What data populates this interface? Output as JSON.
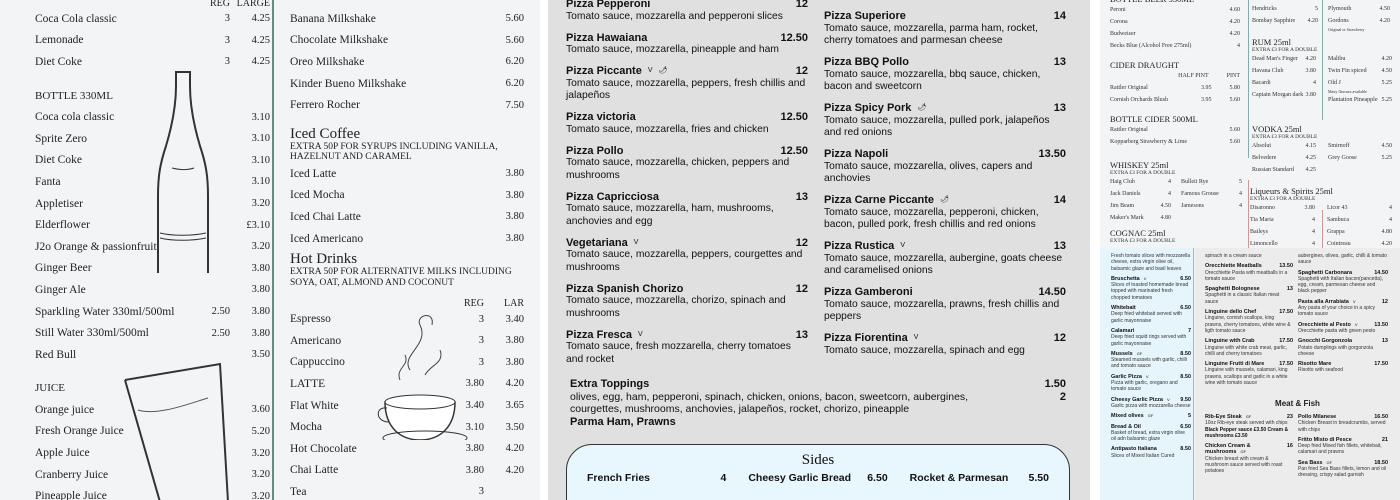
{
  "soft_drinks": {
    "headers": {
      "reg": "REG",
      "large": "LARGE"
    },
    "rows": [
      {
        "name": "Coca Cola classic",
        "reg": "3",
        "large": "4.25"
      },
      {
        "name": "Lemonade",
        "reg": "3",
        "large": "4.25"
      },
      {
        "name": "Diet Coke",
        "reg": "3",
        "large": "4.25"
      },
      {
        "heading": "BOTTLE 330ML"
      },
      {
        "name": "Coca cola classic",
        "large": "3.10"
      },
      {
        "name": "Sprite Zero",
        "large": "3.10"
      },
      {
        "name": "Diet Coke",
        "large": "3.10"
      },
      {
        "name": "Fanta",
        "large": "3.10"
      },
      {
        "name": "Appletiser",
        "large": "3.20"
      },
      {
        "name": "Elderflower",
        "large": "£3.10"
      },
      {
        "name": "J2o Orange & passionfruit",
        "large": "3.20"
      },
      {
        "name": "Ginger Beer",
        "large": "3.80"
      },
      {
        "name": "Ginger Ale",
        "large": "3.80"
      },
      {
        "name": "Sparkling Water 330ml/500ml",
        "reg": "2.50",
        "large": "3.80"
      },
      {
        "name": "Still Water 330ml/500ml",
        "reg": "2.50",
        "large": "3.80"
      },
      {
        "name": "Red Bull",
        "large": "3.50"
      },
      {
        "heading": "JUICE"
      },
      {
        "name": "Orange juice",
        "large": "3.60"
      },
      {
        "name": "Fresh Orange Juice",
        "large": "5.20"
      },
      {
        "name": "Apple Juice",
        "large": "3.20"
      },
      {
        "name": "Cranberry Juice",
        "large": "3.20"
      },
      {
        "name": "Pineapple Juice",
        "large": "3.20"
      }
    ]
  },
  "milkshakes": [
    {
      "name": "Banana Milkshake",
      "price": "5.60"
    },
    {
      "name": "Chocolate Milkshake",
      "price": "5.60"
    },
    {
      "name": "Oreo Milkshake",
      "price": "6.20"
    },
    {
      "name": "Kinder Bueno Milkshake",
      "price": "6.20"
    },
    {
      "name": "Ferrero Rocher",
      "price": "7.50"
    }
  ],
  "iced_coffee": {
    "title": "Iced Coffee",
    "subtitle": "EXTRA 50P FOR SYRUPS INCLUDING VANILLA, HAZELNUT AND CARAMEL",
    "items": [
      {
        "name": "Iced Latte",
        "price": "3.80"
      },
      {
        "name": "Iced Mocha",
        "price": "3.80"
      },
      {
        "name": "Iced Chai Latte",
        "price": "3.80"
      },
      {
        "name": "Iced Americano",
        "price": "3.80"
      }
    ]
  },
  "hot_drinks": {
    "title": "Hot Drinks",
    "subtitle": "EXTRA 50P FOR ALTERNATIVE MILKS INCLUDING SOYA, OAT, ALMOND AND COCONUT",
    "headers": {
      "reg": "REG",
      "large": "LAR"
    },
    "items": [
      {
        "name": "Espresso",
        "reg": "3",
        "large": "3.40"
      },
      {
        "name": "Americano",
        "reg": "3",
        "large": "3.80"
      },
      {
        "name": "Cappuccino",
        "reg": "3",
        "large": "3.80"
      },
      {
        "name": "LATTE",
        "reg": "3.80",
        "large": "4.20"
      },
      {
        "name": "Flat White",
        "reg": "3.40",
        "large": "3.65"
      },
      {
        "name": "Mocha",
        "reg": "3.10",
        "large": "3.50"
      },
      {
        "name": "Hot Chocolate",
        "reg": "3.80",
        "large": "4.20"
      },
      {
        "name": "Chai Latte",
        "reg": "3.80",
        "large": "4.20"
      },
      {
        "name": "Tea",
        "reg": "3"
      }
    ]
  },
  "pizzas_left": [
    {
      "name": "Pizza Pepperoni",
      "price": "12",
      "desc": "Tomato sauce, mozzarella and pepperoni slices"
    },
    {
      "name": "Pizza Hawaiana",
      "price": "12.50",
      "desc": "Tomato sauce, mozzarella, pineapple and ham"
    },
    {
      "name": "Pizza Piccante",
      "tag": "V",
      "chilli": true,
      "price": "12",
      "desc": "Tomato sauce, mozzarella, peppers, fresh chillis and jalapeños"
    },
    {
      "name": "Pizza victoria",
      "price": "12.50",
      "desc": "Tomato sauce, mozzarella, fries and chicken"
    },
    {
      "name": "Pizza Pollo",
      "price": "12.50",
      "desc": "Tomato sauce, mozzarella, chicken, peppers and mushrooms"
    },
    {
      "name": "Pizza Capricciosa",
      "price": "13",
      "desc": "Tomato sauce, mozzarella, ham, mushrooms, anchovies and egg"
    },
    {
      "name": "Vegetariana",
      "tag": "V",
      "price": "12",
      "desc": "Tomato sauce, mozzarella, peppers, courgettes and mushrooms"
    },
    {
      "name": "Pizza Spanish Chorizo",
      "price": "12",
      "desc": "Tomato sauce, mozzarella, chorizo, spinach and mushrooms"
    },
    {
      "name": "Pizza Fresca",
      "tag": "V",
      "price": "13",
      "desc": "Tomato sauce, fresh mozzarella, cherry tomatoes and rocket"
    }
  ],
  "pizzas_right": [
    {
      "name": "Pizza Superiore",
      "price": "14",
      "desc": "Tomato sauce, mozzarella, parma ham, rocket, cherry tomatoes and parmesan cheese"
    },
    {
      "name": "Pizza BBQ Pollo",
      "price": "13",
      "desc": "Tomato sauce, mozzarella, bbq sauce, chicken, bacon and sweetcorn"
    },
    {
      "name": "Pizza Spicy Pork",
      "chilli": true,
      "price": "13",
      "desc": "Tomato sauce, mozzarella, pulled pork, jalapeños and red onions"
    },
    {
      "name": "Pizza Napoli",
      "price": "13.50",
      "desc": "Tomato sauce, mozzarella, olives, capers and anchovies"
    },
    {
      "name": "Pizza Carne Piccante",
      "chilli": true,
      "price": "14",
      "desc": "Tomato sauce, mozzarella, pepperoni, chicken, bacon, pulled pork, fresh chillis and red onions"
    },
    {
      "name": "Pizza Rustica",
      "tag": "V",
      "price": "13",
      "desc": "Tomato sauce, mozzarella, aubergine, goats cheese and caramelised onions"
    },
    {
      "name": "Pizza Gamberoni",
      "price": "14.50",
      "desc": "Tomato sauce, mozzarella, prawns, fresh chillis and peppers"
    },
    {
      "name": "Pizza Fiorentina",
      "tag": "V",
      "price": "12",
      "desc": "Tomato sauce, mozzarella, spinach and egg"
    }
  ],
  "extra_toppings": {
    "title": "Extra Toppings",
    "price1": "1.50",
    "list1": "olives, egg, ham, pepperoni, spinach, chicken, onions, bacon, sweetcorn, aubergines, courgettes, mushrooms, anchovies, jalapeños, rocket, chorizo, pineapple",
    "price2": "2",
    "list2": "Parma Ham, Prawns"
  },
  "sides": {
    "title": "Sides",
    "items": [
      {
        "name": "French Fries",
        "price": "4"
      },
      {
        "name": "Cheesy Garlic Bread",
        "price": "6.50"
      },
      {
        "name": "Rocket & Parmesan",
        "price": "5.50"
      }
    ]
  },
  "bar": {
    "col1": [
      {
        "t": "BOTTLE BEER 330ML"
      },
      {
        "n": "Peroni",
        "p": "4.60"
      },
      {
        "n": "Corona",
        "p": "4.20"
      },
      {
        "n": "Budweiser",
        "p": "4.20"
      },
      {
        "n": "Becks Blue (Alcohol Free 275ml)",
        "p": "4"
      },
      {
        "t": "CIDER DRAUGHT"
      },
      {
        "n": "",
        "p": "HALF PINT",
        "p2": "PINT"
      },
      {
        "n": "Rattler Original",
        "p": "3.95",
        "p2": "5.80"
      },
      {
        "n": "Cornish Orchards Blush",
        "p": "3.95",
        "p2": "5.60"
      },
      {
        "t": "BOTTLE CIDER 500ML"
      },
      {
        "n": "Rattler Original",
        "p": "5.60"
      },
      {
        "n": "Kopparberg Strawberry & Lime",
        "p": "5.60"
      }
    ],
    "whiskey": {
      "title": "WHISKEY 25ml",
      "sub": "EXTRA £3 FOR A DOUBLE",
      "items": [
        {
          "n": "Haig Club",
          "p": "4"
        },
        {
          "n": "Bulleit Rye",
          "p": "5"
        },
        {
          "n": "Jack Daniels",
          "p": "4"
        },
        {
          "n": "Famous Grouse",
          "p": "4"
        },
        {
          "n": "Jim Beam",
          "p": "4.50"
        },
        {
          "n": "Jamesons",
          "p": "4"
        },
        {
          "n": "Maker's Mark",
          "p": "4.80"
        }
      ]
    },
    "cognac": {
      "title": "COGNAC 25ml",
      "sub": "EXTRA £3 FOR A DOUBLE"
    },
    "gin_a": [
      {
        "n": "Hendricks",
        "p": "5"
      },
      {
        "n": "Bombay Sapphire",
        "p": "4.20"
      }
    ],
    "gin_b": [
      {
        "n": "Plymouth",
        "p": "4.50"
      },
      {
        "n": "Gordons",
        "p": "4.20",
        "note": "Original or Strawberry"
      }
    ],
    "rum": {
      "title": "RUM 25ml",
      "sub": "EXTRA £3 FOR A DOUBLE",
      "a": [
        {
          "n": "Dead Man's Finger",
          "p": "4.20"
        },
        {
          "n": "Havana Club",
          "p": "3.80"
        },
        {
          "n": "Bacardi",
          "p": "4"
        },
        {
          "n": "Captain Morgan dark",
          "p": "3.80"
        }
      ],
      "b": [
        {
          "n": "Malibu",
          "p": "4.20"
        },
        {
          "n": "Twin Fin spiced",
          "p": "4.50"
        },
        {
          "n": "Old J",
          "p": "5.25",
          "note": "Many flavours available"
        },
        {
          "n": "Plantation Pineapple",
          "p": "5.25"
        }
      ]
    },
    "vodka": {
      "title": "VODKA 25ml",
      "sub": "EXTRA £3 FOR A DOUBLE",
      "a": [
        {
          "n": "Absolut",
          "p": "4.15"
        },
        {
          "n": "Belvedere",
          "p": "4.25"
        },
        {
          "n": "Russian Standard",
          "p": "4.25"
        }
      ],
      "b": [
        {
          "n": "Smirnoff",
          "p": "4.50"
        },
        {
          "n": "Grey Goose",
          "p": "5.25"
        }
      ]
    },
    "liqueurs": {
      "title": "Liqueurs & Spirits 25ml",
      "sub": "EXTRA £3 FOR A DOUBLE",
      "a": [
        {
          "n": "Disaronno",
          "p": "3.80"
        },
        {
          "n": "Tia Maria",
          "p": "4"
        },
        {
          "n": "Baileys",
          "p": "4"
        },
        {
          "n": "Limoncello",
          "p": "4"
        }
      ],
      "b": [
        {
          "n": "Licor 43",
          "p": "4"
        },
        {
          "n": "Sambuca",
          "p": "4"
        },
        {
          "n": "Grappa",
          "p": "4.80"
        },
        {
          "n": "Cointreau",
          "p": "4.20"
        }
      ]
    }
  },
  "food": {
    "starters": [
      {
        "d": "Fresh tomato slices with mozzarella cheese, extra virgin olive oil, balsamic glaze and basil leaves"
      },
      {
        "n": "Bruschetta",
        "tag": "V",
        "p": "6.50",
        "d": "Slices of toasted homemade bread topped with marinated fresh chopped tomatoes"
      },
      {
        "n": "Whitebait",
        "p": "6.50",
        "d": "Deep fried whitebait served with garlic mayonnaise"
      },
      {
        "n": "Calamari",
        "p": "7",
        "d": "Deep fried squid rings served with garlic mayonnaise"
      },
      {
        "n": "Mussels",
        "tag": "GF",
        "p": "8.50",
        "d": "Steamed mussels with garlic, chilli and tomato sauce"
      },
      {
        "n": "Garlic Pizza",
        "tag": "V",
        "p": "8.50",
        "d": "Pizza with garlic, oregano and tomato sauce"
      },
      {
        "n": "Cheesy Garlic Pizza",
        "tag": "V",
        "p": "9.50",
        "d": "Garlic pizza with mozzarella cheese"
      },
      {
        "n": "Mixed olives",
        "tag": "GF",
        "p": "5"
      },
      {
        "n": "Bread & Oil",
        "p": "6.50",
        "d": "Basket of bread, extra virgin olive oil adn balsamic glaze"
      },
      {
        "n": "Antipasto Italiana",
        "p": "8.50",
        "d": "Slices of Mixed Italian Cured"
      }
    ],
    "pasta_a": [
      {
        "d": "spinach in a cream sauce"
      },
      {
        "n": "Orecchiette Meatballs",
        "p": "13.50",
        "d": "Orecchiette Pasta with meatballs in a tomato sauce"
      },
      {
        "n": "Spaghetti Bolognese",
        "p": "13",
        "d": "Spaghetti in a classic Italian meat sauce"
      },
      {
        "n": "Linguine dello Chef",
        "p": "17.50",
        "d": "Linguine, cornish scallops, king prawns, cherry tomatoes, white wine & ligth tomato sauce"
      },
      {
        "n": "Linguine with Crab",
        "p": "17.50",
        "d": "Linguine with white crab meat, garlic, chilli and cherry tomatoes"
      },
      {
        "n": "Linguine Frutti di Mare",
        "p": "17.50",
        "d": "Linguine with mussels, calamari, king prawns, scallops and garlic in a white wine with tomato sauce"
      }
    ],
    "pasta_b": [
      {
        "d": "aubergines, olives, garlic, chilli & tomato sauce"
      },
      {
        "n": "Spaghetti Carbonara",
        "p": "14.50",
        "d": "Spaghetti with Italian bacon(pancetta), egg, cream, parmesan cheese and black pepper"
      },
      {
        "n": "Pasta alla Arrabiata",
        "tag": "V",
        "p": "12",
        "d": "Any pasta of your choice in a spicy tomato sauce"
      },
      {
        "n": "Orecchiette al Pesto",
        "tag": "V",
        "p": "13.50",
        "d": "Orecchiette pasta with green pesto"
      },
      {
        "n": "Gnocchi Gorgonzola",
        "p": "13",
        "d": "Potato dumplings with gorgonzola cheese"
      },
      {
        "n": "Risotto Mare",
        "p": "17.50",
        "d": "Risotto with seafood"
      }
    ],
    "meat_fish_title": "Meat & Fish",
    "meat_a": [
      {
        "n": "Rib-Eye Steak",
        "tag": "GF",
        "p": "23",
        "d": "10oz Rib-eye steak served with chips",
        "extra": "Black Pepper sauce £3.50 Cream & mushrooms £3.50"
      },
      {
        "n": "Chicken Cream & mushrooms",
        "tag": "GF",
        "p": "16",
        "d": "Chicken breast with cream & mushroom sauce served with roast potatoes"
      }
    ],
    "meat_b": [
      {
        "n": "Pollo Milanese",
        "p": "16.50",
        "d": "Chicken Breast in breadcrumbs, served with chips"
      },
      {
        "n": "Fritto Misto di Pesce",
        "p": "21",
        "d": "Deep fried Mixed fish fillets, whitebait, calamari and prawns"
      },
      {
        "n": "Sea Bass",
        "tag": "GF",
        "p": "18.50",
        "d": "Pan fried Sea Bass fillets, lemon and oil dressing, crispy salad garnish"
      }
    ]
  },
  "colors": {
    "divider": "#5f8f80",
    "sides_bg": "#e8f7fd",
    "starters_bg": "#e6f5fc",
    "pizza_bg": "#e0e0e0"
  }
}
